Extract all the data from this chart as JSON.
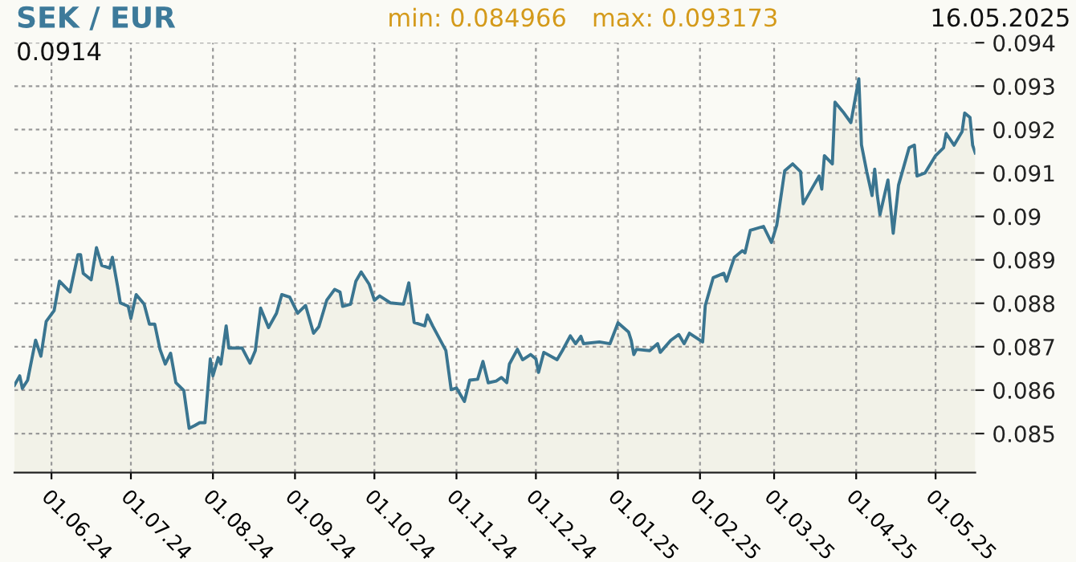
{
  "chart_data": {
    "type": "area",
    "title": "SEK / EUR",
    "annotations": [
      "min: 0.084966",
      "max: 0.093173",
      "16.05.2025",
      "0.0914"
    ],
    "x": [
      "2024-05-18",
      "2024-05-20",
      "2024-05-21",
      "2024-05-23",
      "2024-05-26",
      "2024-05-28",
      "2024-05-30",
      "2024-06-02",
      "2024-06-04",
      "2024-06-08",
      "2024-06-11",
      "2024-06-12",
      "2024-06-13",
      "2024-06-16",
      "2024-06-18",
      "2024-06-20",
      "2024-06-23",
      "2024-06-24",
      "2024-06-26",
      "2024-06-27",
      "2024-06-30",
      "2024-07-01",
      "2024-07-03",
      "2024-07-06",
      "2024-07-08",
      "2024-07-10",
      "2024-07-12",
      "2024-07-14",
      "2024-07-16",
      "2024-07-18",
      "2024-07-21",
      "2024-07-23",
      "2024-07-25",
      "2024-07-27",
      "2024-07-29",
      "2024-07-31",
      "2024-08-01",
      "2024-08-03",
      "2024-08-04",
      "2024-08-06",
      "2024-08-07",
      "2024-08-12",
      "2024-08-15",
      "2024-08-17",
      "2024-08-19",
      "2024-08-22",
      "2024-08-25",
      "2024-08-27",
      "2024-08-30",
      "2024-09-02",
      "2024-09-05",
      "2024-09-08",
      "2024-09-10",
      "2024-09-13",
      "2024-09-16",
      "2024-09-18",
      "2024-09-19",
      "2024-09-22",
      "2024-09-24",
      "2024-09-26",
      "2024-09-29",
      "2024-10-01",
      "2024-10-03",
      "2024-10-07",
      "2024-10-12",
      "2024-10-14",
      "2024-10-16",
      "2024-10-20",
      "2024-10-21",
      "2024-10-23",
      "2024-10-28",
      "2024-10-30",
      "2024-11-01",
      "2024-11-04",
      "2024-11-06",
      "2024-11-09",
      "2024-11-11",
      "2024-11-13",
      "2024-11-16",
      "2024-11-18",
      "2024-11-20",
      "2024-11-21",
      "2024-11-24",
      "2024-11-26",
      "2024-11-29",
      "2024-12-01",
      "2024-12-02",
      "2024-12-04",
      "2024-12-09",
      "2024-12-11",
      "2024-12-14",
      "2024-12-16",
      "2024-12-18",
      "2024-12-19",
      "2024-12-25",
      "2024-12-29",
      "2025-01-01",
      "2025-01-05",
      "2025-01-06",
      "2025-01-07",
      "2025-01-08",
      "2025-01-13",
      "2025-01-16",
      "2025-01-17",
      "2025-01-21",
      "2025-01-24",
      "2025-01-26",
      "2025-01-28",
      "2025-02-02",
      "2025-02-03",
      "2025-02-06",
      "2025-02-10",
      "2025-02-11",
      "2025-02-14",
      "2025-02-17",
      "2025-02-18",
      "2025-02-20",
      "2025-02-25",
      "2025-02-28",
      "2025-03-02",
      "2025-03-05",
      "2025-03-08",
      "2025-03-11",
      "2025-03-12",
      "2025-03-16",
      "2025-03-18",
      "2025-03-19",
      "2025-03-20",
      "2025-03-23",
      "2025-03-24",
      "2025-03-27",
      "2025-03-30",
      "2025-04-02",
      "2025-04-03",
      "2025-04-05",
      "2025-04-07",
      "2025-04-08",
      "2025-04-09",
      "2025-04-10",
      "2025-04-13",
      "2025-04-15",
      "2025-04-17",
      "2025-04-21",
      "2025-04-23",
      "2025-04-24",
      "2025-04-27",
      "2025-05-01",
      "2025-05-04",
      "2025-05-05",
      "2025-05-08",
      "2025-05-11",
      "2025-05-12",
      "2025-05-14",
      "2025-05-15",
      "2025-05-16"
    ],
    "series": [
      {
        "color": "#3a7590",
        "values": [
          0.08611,
          0.08633,
          0.08604,
          0.08623,
          0.08715,
          0.08678,
          0.08758,
          0.08783,
          0.08851,
          0.08826,
          0.08912,
          0.08912,
          0.08869,
          0.08854,
          0.08928,
          0.08887,
          0.08881,
          0.08906,
          0.08838,
          0.08801,
          0.08793,
          0.08765,
          0.0882,
          0.08798,
          0.08752,
          0.08752,
          0.08694,
          0.0866,
          0.08685,
          0.08617,
          0.08599,
          0.08512,
          0.08518,
          0.08525,
          0.08525,
          0.08672,
          0.08633,
          0.08675,
          0.0866,
          0.08748,
          0.08697,
          0.08697,
          0.08662,
          0.08691,
          0.08789,
          0.08744,
          0.08777,
          0.0882,
          0.08814,
          0.08777,
          0.08795,
          0.08731,
          0.08746,
          0.08807,
          0.08832,
          0.08826,
          0.08793,
          0.08798,
          0.08851,
          0.08872,
          0.08844,
          0.08807,
          0.08817,
          0.08801,
          0.08798,
          0.08847,
          0.08756,
          0.08748,
          0.08773,
          0.08748,
          0.08691,
          0.08601,
          0.08605,
          0.08574,
          0.08623,
          0.08625,
          0.08666,
          0.08617,
          0.08621,
          0.08629,
          0.08617,
          0.0866,
          0.08694,
          0.0867,
          0.08682,
          0.08672,
          0.08641,
          0.08687,
          0.0867,
          0.08691,
          0.08725,
          0.08707,
          0.08724,
          0.08707,
          0.08711,
          0.08707,
          0.08755,
          0.08734,
          0.08715,
          0.08682,
          0.08694,
          0.08691,
          0.08707,
          0.08687,
          0.08715,
          0.08728,
          0.08707,
          0.08731,
          0.08711,
          0.08795,
          0.08859,
          0.08869,
          0.08851,
          0.08906,
          0.08921,
          0.08916,
          0.08968,
          0.08977,
          0.0894,
          0.0898,
          0.09105,
          0.09121,
          0.09103,
          0.09029,
          0.09072,
          0.09093,
          0.09063,
          0.0914,
          0.09121,
          0.09263,
          0.09241,
          0.09216,
          0.09317,
          0.09165,
          0.09103,
          0.09048,
          0.09109,
          0.09048,
          0.09004,
          0.09084,
          0.08961,
          0.09072,
          0.09158,
          0.09164,
          0.09093,
          0.091,
          0.0914,
          0.09158,
          0.09191,
          0.09164,
          0.09195,
          0.09238,
          0.09228,
          0.09164,
          0.09146
        ]
      }
    ],
    "xlim": [
      "2024-05-18",
      "2025-05-16"
    ],
    "xticks": [
      {
        "value": "2024-06-01",
        "label": "01.06.24"
      },
      {
        "value": "2024-07-01",
        "label": "01.07.24"
      },
      {
        "value": "2024-08-01",
        "label": "01.08.24"
      },
      {
        "value": "2024-09-01",
        "label": "01.09.24"
      },
      {
        "value": "2024-10-01",
        "label": "01.10.24"
      },
      {
        "value": "2024-11-01",
        "label": "01.11.24"
      },
      {
        "value": "2024-12-01",
        "label": "01.12.24"
      },
      {
        "value": "2025-01-01",
        "label": "01.01.25"
      },
      {
        "value": "2025-02-01",
        "label": "01.02.25"
      },
      {
        "value": "2025-03-01",
        "label": "01.03.25"
      },
      {
        "value": "2025-04-01",
        "label": "01.04.25"
      },
      {
        "value": "2025-05-01",
        "label": "01.05.25"
      }
    ],
    "ylim": [
      0.0841,
      0.094
    ],
    "yticks": [
      0.085,
      0.086,
      0.087,
      0.088,
      0.089,
      0.09,
      0.091,
      0.092,
      0.093,
      0.094
    ],
    "grid": true
  }
}
